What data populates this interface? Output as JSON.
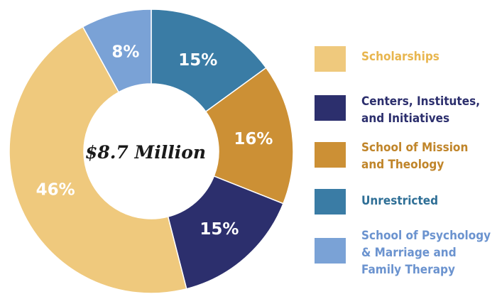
{
  "chart_data": {
    "type": "pie",
    "center_label": "$8.7 Million",
    "slices": [
      {
        "name": "Unrestricted",
        "value": 15,
        "label": "15%",
        "color": "#3a7ca5"
      },
      {
        "name": "School of Mission and Theology",
        "value": 16,
        "label": "16%",
        "color": "#cc9035"
      },
      {
        "name": "Centers, Institutes, and Initiatives",
        "value": 15,
        "label": "15%",
        "color": "#2c2f6d"
      },
      {
        "name": "Scholarships",
        "value": 46,
        "label": "46%",
        "color": "#efc97d"
      },
      {
        "name": "School of Psychology & Marriage and Family Therapy",
        "value": 8,
        "label": "8%",
        "color": "#7aa2d6"
      }
    ],
    "legend_position": "right"
  },
  "legend": [
    {
      "lines": [
        "Scholarships"
      ],
      "color": "#efc97d",
      "text_color": "#e8b64f"
    },
    {
      "lines": [
        "Centers, Institutes,",
        "and Initiatives"
      ],
      "color": "#2c2f6d",
      "text_color": "#2c2f6d"
    },
    {
      "lines": [
        "School of Mission",
        "and Theology"
      ],
      "color": "#cc9035",
      "text_color": "#c0852a"
    },
    {
      "lines": [
        "Unrestricted"
      ],
      "color": "#3a7ca5",
      "text_color": "#2f6f96"
    },
    {
      "lines": [
        "School of Psychology",
        "& Marriage and",
        "Family Therapy"
      ],
      "color": "#7aa2d6",
      "text_color": "#6b93cf"
    }
  ]
}
